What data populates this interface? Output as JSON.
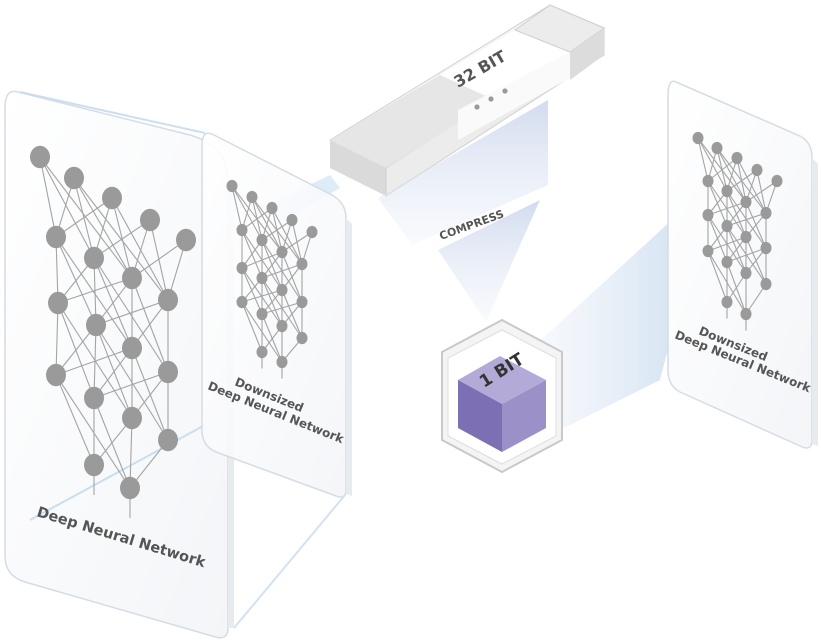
{
  "labels": {
    "deep_network": "Deep Neural Network",
    "downsized_left_line1": "Downsized",
    "downsized_left_line2": "Deep Neural Network",
    "downsized_right_line1": "Downsized",
    "downsized_right_line2": "Deep Neural Network",
    "bit32": "32 BIT",
    "compress": "COMPRESS",
    "bit1": "1 BIT"
  },
  "colors": {
    "cube_front": "#7c6fb3",
    "cube_top": "#b3aad8",
    "cube_side": "#9c90c8",
    "beam": "#cfdcef",
    "node": "#9a9a9a"
  }
}
